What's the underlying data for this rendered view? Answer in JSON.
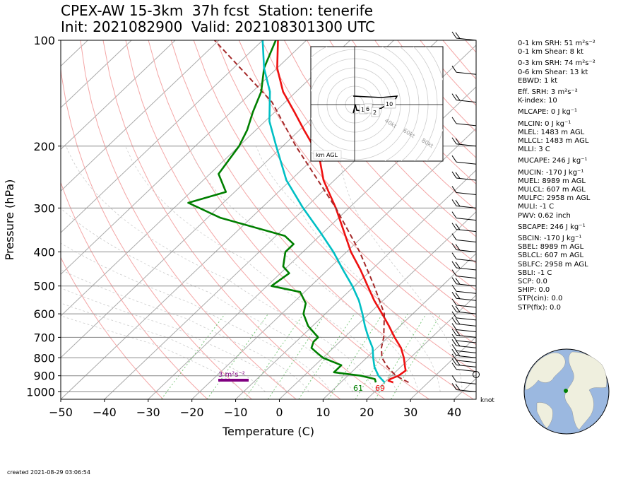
{
  "header": {
    "title_line1": "CPEX-AW 15-3km  37h fcst  Station: tenerife",
    "title_line2": "Init: 2021082900  Valid: 202108301300 UTC"
  },
  "chart_data": {
    "type": "line",
    "title": "CPEX-AW 15-3km  37h fcst  Station: tenerife",
    "subtitle": "Init: 2021082900  Valid: 202108301300 UTC",
    "xlabel": "Temperature (C)",
    "ylabel": "Pressure (hPa)",
    "xlim": [
      -50,
      45
    ],
    "ylim": [
      1050,
      100
    ],
    "y_scale": "log",
    "skew": "skew-T",
    "xticks": [
      "−50",
      "−40",
      "−30",
      "−20",
      "−10",
      "0",
      "10",
      "20",
      "30",
      "40"
    ],
    "yticks": [
      "100",
      "200",
      "300",
      "400",
      "500",
      "600",
      "700",
      "800",
      "900",
      "1000"
    ],
    "series": [
      {
        "name": "temperature",
        "color": "#ee1111",
        "pressure": [
          940,
          930,
          920,
          900,
          870,
          850,
          800,
          750,
          700,
          650,
          600,
          550,
          500,
          450,
          400,
          350,
          300,
          270,
          250,
          220,
          200,
          180,
          160,
          140,
          120,
          100
        ],
        "values": [
          22,
          20.5,
          20.5,
          21.6,
          22,
          21,
          18.5,
          15.5,
          11.5,
          7.5,
          3,
          -2,
          -7,
          -12.5,
          -19,
          -25.5,
          -33,
          -38.5,
          -42.5,
          -48,
          -53,
          -59,
          -65.5,
          -73,
          -80,
          -86.5
        ]
      },
      {
        "name": "parcel",
        "color": "#a52a2a",
        "dashed": true,
        "pressure": [
          940,
          900,
          850,
          800,
          750,
          700,
          600,
          500,
          400,
          300,
          200,
          150,
          100
        ],
        "values": [
          25.5,
          21,
          17,
          13.5,
          11,
          9,
          3.5,
          -5.5,
          -17,
          -33,
          -57,
          -73,
          -101
        ]
      },
      {
        "name": "dewpoint",
        "color": "#007f00",
        "pressure": [
          940,
          920,
          900,
          880,
          860,
          840,
          820,
          800,
          780,
          750,
          720,
          700,
          650,
          600,
          560,
          520,
          500,
          460,
          440,
          400,
          380,
          360,
          320,
          290,
          270,
          240,
          200,
          180,
          160,
          140,
          120,
          100
        ],
        "values": [
          18,
          17,
          13,
          6,
          6,
          6,
          3,
          0,
          -2,
          -5,
          -6,
          -6,
          -11,
          -15,
          -17,
          -21,
          -29,
          -28,
          -31,
          -34,
          -34,
          -38,
          -57,
          -68,
          -62,
          -68,
          -70,
          -72,
          -75,
          -78,
          -83,
          -87
        ]
      },
      {
        "name": "wet-bulb",
        "color": "#00bfc4",
        "pressure": [
          940,
          900,
          850,
          800,
          750,
          700,
          650,
          600,
          550,
          500,
          450,
          400,
          350,
          300,
          250,
          200,
          170,
          140,
          120,
          100
        ],
        "values": [
          20,
          17,
          14,
          11.5,
          9,
          5.5,
          2,
          -1.5,
          -5.5,
          -10.5,
          -16.5,
          -23,
          -31,
          -40.5,
          -51,
          -61.5,
          -69,
          -76,
          -83,
          -90
        ]
      }
    ],
    "labels": {
      "surface_temperature": "69",
      "surface_dewpoint": "61",
      "srh_label": "3 m²s⁻²",
      "wind_unit": "knot"
    },
    "hodograph": {
      "ring_labels": [
        "40kt",
        "60kt",
        "80kt"
      ],
      "height_labels": [
        "1",
        "6",
        "2",
        "10"
      ],
      "legend": "km AGL"
    }
  },
  "indices": [
    {
      "text": "0-1 km SRH: 51 m²s⁻²"
    },
    {
      "text": "0-1 km Shear: 8 kt"
    },
    {
      "text": "0-3 km SRH: 74 m²s⁻²"
    },
    {
      "text": "0-6 km Shear: 13 kt"
    },
    {
      "text": "EBWD: 1 kt"
    },
    {
      "text": "Eff. SRH: 3 m²s⁻²"
    },
    {
      "text": "K-index: 10"
    },
    {
      "text": "MLCAPE: 0 J kg⁻¹"
    },
    {
      "text": "MLCIN: 0 J kg⁻¹"
    },
    {
      "text": "MLEL: 1483 m AGL"
    },
    {
      "text": "MLLCL: 1483 m AGL"
    },
    {
      "text": "MLLI: 3 C"
    },
    {
      "text": "MUCAPE: 246 J kg⁻¹"
    },
    {
      "text": "MUCIN: -170 J kg⁻¹"
    },
    {
      "text": "MUEL: 8989 m AGL"
    },
    {
      "text": "MULCL: 607 m AGL"
    },
    {
      "text": "MULFC: 2958 m AGL"
    },
    {
      "text": "MULI: -1 C"
    },
    {
      "text": "PWV: 0.62 inch"
    },
    {
      "text": "SBCAPE: 246 J kg⁻¹"
    },
    {
      "text": "SBCIN: -170 J kg⁻¹"
    },
    {
      "text": "SBEL: 8989 m AGL"
    },
    {
      "text": "SBLCL: 607 m AGL"
    },
    {
      "text": "SBLFC: 2958 m AGL"
    },
    {
      "text": "SBLI: -1 C"
    },
    {
      "text": "SCP: 0.0"
    },
    {
      "text": "SHIP: 0.0"
    },
    {
      "text": "STP(cin): 0.0"
    },
    {
      "text": "STP(fix): 0.0"
    }
  ],
  "footer": {
    "created": "created 2021-08-29 03:06:54"
  },
  "colors": {
    "temperature": "#ee1111",
    "dewpoint": "#007f00",
    "parcel": "#a52a2a",
    "wet_bulb": "#00bfc4",
    "dry_adiabat": "#f4a6a6",
    "mixing_ratio": "#7fc97f",
    "srh_bar": "#800080",
    "ocean": "#9bb8e0",
    "land": "#efefde"
  }
}
